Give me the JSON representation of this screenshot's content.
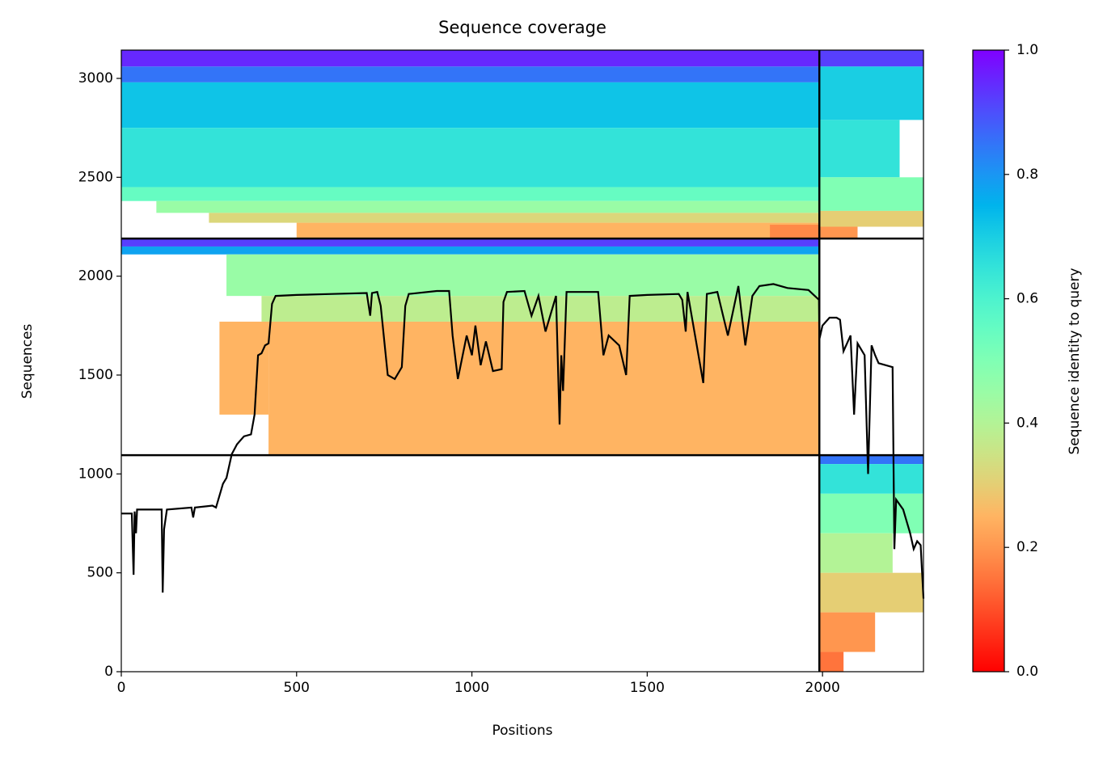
{
  "chart_data": {
    "type": "coverage",
    "title": "Sequence coverage",
    "xlabel": "Positions",
    "ylabel": "Sequences",
    "colorbar_label": "Sequence identity to query",
    "colormap": "rainbow_r",
    "clim": [
      0,
      1
    ],
    "xlim": [
      0,
      2288
    ],
    "ylim": [
      0,
      3143
    ],
    "xticks": [
      0,
      500,
      1000,
      1500,
      2000
    ],
    "yticks": [
      0,
      500,
      1000,
      1500,
      2000,
      2500,
      3000
    ],
    "cticks": [
      {
        "value": 0,
        "label": "0.0"
      },
      {
        "value": 0.2,
        "label": "0.2"
      },
      {
        "value": 0.4,
        "label": "0.4"
      },
      {
        "value": 0.6,
        "label": "0.6"
      },
      {
        "value": 0.8,
        "label": "0.8"
      },
      {
        "value": 1,
        "label": "1.0"
      }
    ],
    "boundaries_x": [
      1991
    ],
    "boundaries_y": [
      1095,
      2190
    ],
    "blocks": [
      {
        "x0": 0,
        "x1": 1991,
        "y0": 3060,
        "y1": 3143,
        "identity": 0.95
      },
      {
        "x0": 0,
        "x1": 1991,
        "y0": 2980,
        "y1": 3060,
        "identity": 0.85
      },
      {
        "x0": 0,
        "x1": 1991,
        "y0": 2750,
        "y1": 2980,
        "identity": 0.72
      },
      {
        "x0": 0,
        "x1": 1991,
        "y0": 2450,
        "y1": 2750,
        "identity": 0.65
      },
      {
        "x0": 0,
        "x1": 1991,
        "y0": 2380,
        "y1": 2450,
        "identity": 0.55
      },
      {
        "x0": 100,
        "x1": 1991,
        "y0": 2320,
        "y1": 2380,
        "identity": 0.45
      },
      {
        "x0": 250,
        "x1": 1991,
        "y0": 2270,
        "y1": 2320,
        "identity": 0.32
      },
      {
        "x0": 500,
        "x1": 1991,
        "y0": 2190,
        "y1": 2270,
        "identity": 0.25
      },
      {
        "x0": 1850,
        "x1": 1991,
        "y0": 2190,
        "y1": 2260,
        "identity": 0.18
      },
      {
        "x0": 1991,
        "x1": 2288,
        "y0": 3060,
        "y1": 3143,
        "identity": 0.92
      },
      {
        "x0": 1991,
        "x1": 2288,
        "y0": 2790,
        "y1": 3060,
        "identity": 0.7
      },
      {
        "x0": 1991,
        "x1": 2220,
        "y0": 2500,
        "y1": 2790,
        "identity": 0.65
      },
      {
        "x0": 1991,
        "x1": 2288,
        "y0": 2330,
        "y1": 2500,
        "identity": 0.5
      },
      {
        "x0": 1991,
        "x1": 2288,
        "y0": 2250,
        "y1": 2330,
        "identity": 0.3
      },
      {
        "x0": 1991,
        "x1": 2100,
        "y0": 2190,
        "y1": 2250,
        "identity": 0.2
      },
      {
        "x0": 0,
        "x1": 1991,
        "y0": 2150,
        "y1": 2190,
        "identity": 0.92
      },
      {
        "x0": 0,
        "x1": 1991,
        "y0": 2110,
        "y1": 2150,
        "identity": 0.78
      },
      {
        "x0": 300,
        "x1": 1991,
        "y0": 1900,
        "y1": 2110,
        "identity": 0.45
      },
      {
        "x0": 400,
        "x1": 1991,
        "y0": 1770,
        "y1": 1900,
        "identity": 0.38
      },
      {
        "x0": 420,
        "x1": 1991,
        "y0": 1095,
        "y1": 1770,
        "identity": 0.25
      },
      {
        "x0": 280,
        "x1": 420,
        "y0": 1300,
        "y1": 1770,
        "identity": 0.25
      },
      {
        "x0": 1991,
        "x1": 2288,
        "y0": 1050,
        "y1": 1095,
        "identity": 0.85
      },
      {
        "x0": 1991,
        "x1": 2288,
        "y0": 900,
        "y1": 1050,
        "identity": 0.65
      },
      {
        "x0": 1991,
        "x1": 2288,
        "y0": 700,
        "y1": 900,
        "identity": 0.5
      },
      {
        "x0": 1991,
        "x1": 2200,
        "y0": 500,
        "y1": 700,
        "identity": 0.4
      },
      {
        "x0": 1991,
        "x1": 2288,
        "y0": 300,
        "y1": 500,
        "identity": 0.3
      },
      {
        "x0": 1991,
        "x1": 2150,
        "y0": 100,
        "y1": 300,
        "identity": 0.2
      },
      {
        "x0": 1991,
        "x1": 2060,
        "y0": 0,
        "y1": 100,
        "identity": 0.15
      }
    ],
    "coverage_x": [
      0,
      30,
      35,
      38,
      42,
      45,
      115,
      118,
      122,
      130,
      200,
      205,
      210,
      260,
      270,
      290,
      300,
      315,
      330,
      350,
      370,
      380,
      390,
      400,
      410,
      420,
      430,
      440,
      500,
      600,
      700,
      710,
      715,
      730,
      740,
      760,
      780,
      800,
      810,
      820,
      900,
      935,
      945,
      960,
      985,
      1000,
      1010,
      1025,
      1040,
      1060,
      1085,
      1090,
      1100,
      1150,
      1170,
      1190,
      1210,
      1240,
      1250,
      1255,
      1260,
      1270,
      1360,
      1375,
      1390,
      1420,
      1440,
      1450,
      1500,
      1590,
      1600,
      1610,
      1615,
      1660,
      1670,
      1700,
      1730,
      1760,
      1780,
      1800,
      1820,
      1860,
      1900,
      1960,
      1990,
      1991,
      2000,
      2020,
      2040,
      2050,
      2060,
      2080,
      2090,
      2100,
      2120,
      2130,
      2140,
      2150,
      2160,
      2200,
      2205,
      2210,
      2230,
      2250,
      2260,
      2270,
      2280,
      2288
    ],
    "coverage": [
      800,
      800,
      490,
      810,
      700,
      820,
      820,
      400,
      720,
      820,
      830,
      780,
      830,
      840,
      830,
      950,
      980,
      1100,
      1150,
      1190,
      1200,
      1300,
      1600,
      1610,
      1650,
      1660,
      1860,
      1900,
      1905,
      1910,
      1915,
      1800,
      1915,
      1920,
      1850,
      1500,
      1480,
      1540,
      1850,
      1910,
      1925,
      1925,
      1700,
      1480,
      1700,
      1600,
      1750,
      1550,
      1670,
      1520,
      1530,
      1870,
      1920,
      1925,
      1800,
      1900,
      1720,
      1900,
      1250,
      1600,
      1420,
      1920,
      1920,
      1600,
      1700,
      1650,
      1500,
      1900,
      1905,
      1910,
      1880,
      1720,
      1920,
      1460,
      1910,
      1920,
      1700,
      1950,
      1650,
      1900,
      1950,
      1960,
      1940,
      1930,
      1880,
      1680,
      1750,
      1790,
      1790,
      1780,
      1620,
      1700,
      1300,
      1660,
      1600,
      1000,
      1650,
      1600,
      1560,
      1540,
      620,
      870,
      820,
      700,
      620,
      660,
      640,
      370
    ]
  }
}
